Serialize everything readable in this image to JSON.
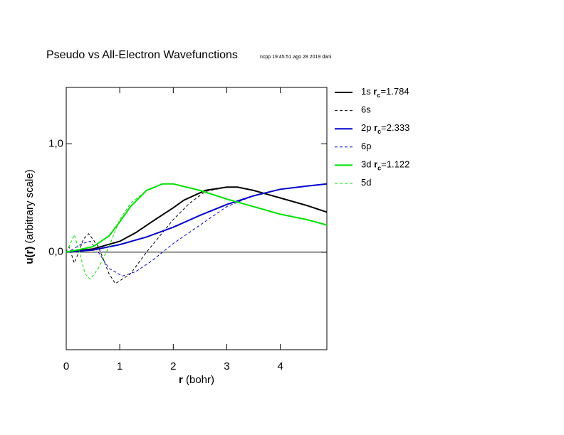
{
  "chart_data": {
    "type": "line",
    "title": "Pseudo vs All-Electron Wavefunctions",
    "subtitle": "ncpp 19:45:51 ago 28 2019 dani",
    "x_label": {
      "bold": "r",
      "rest": "(bohr)"
    },
    "y_label": {
      "bold": "u(r)",
      "rest": "(arbitrary scale)"
    },
    "xlim": [
      0,
      4.87
    ],
    "ylim": [
      -0.9,
      1.52
    ],
    "xticks": [
      0,
      1,
      2,
      3,
      4
    ],
    "yticks": [
      {
        "value": 0,
        "label": "0,0"
      },
      {
        "value": 1,
        "label": "1,0"
      }
    ],
    "zero_line": true,
    "series": [
      {
        "name": "1s",
        "rc_symbol": "r",
        "rc_subscript": "c",
        "rc_text": "=1.784",
        "color": "#000000",
        "dash": false,
        "x": [
          0,
          0.5,
          1,
          1.3,
          1.6,
          2,
          2.2,
          2.6,
          3,
          3.2,
          3.5,
          4,
          4.5,
          4.87
        ],
        "values": [
          0,
          0.03,
          0.1,
          0.18,
          0.28,
          0.41,
          0.48,
          0.57,
          0.6,
          0.6,
          0.57,
          0.5,
          0.43,
          0.37
        ]
      },
      {
        "name": "6s",
        "color": "#000000",
        "dash": true,
        "x": [
          0,
          0.05,
          0.15,
          0.25,
          0.32,
          0.42,
          0.6,
          0.8,
          0.92,
          1.2,
          1.5,
          2,
          2.3,
          2.6,
          3,
          3.2,
          3.5,
          4,
          4.5,
          4.87
        ],
        "values": [
          0,
          0.05,
          -0.1,
          0.02,
          0.12,
          0.17,
          0.05,
          -0.2,
          -0.29,
          -0.2,
          0.0,
          0.3,
          0.45,
          0.56,
          0.6,
          0.6,
          0.57,
          0.5,
          0.43,
          0.37
        ]
      },
      {
        "name": "2p",
        "rc_symbol": "r",
        "rc_subscript": "c",
        "rc_text": "=2.333",
        "color": "#0000cc",
        "dash": false,
        "x": [
          0,
          0.5,
          1,
          1.5,
          2,
          2.5,
          3,
          3.5,
          4,
          4.5,
          4.87
        ],
        "values": [
          0,
          0.02,
          0.07,
          0.14,
          0.23,
          0.34,
          0.44,
          0.52,
          0.58,
          0.61,
          0.63
        ]
      },
      {
        "name": "6p",
        "color": "#0000cc",
        "dash": true,
        "x": [
          0,
          0.1,
          0.3,
          0.45,
          0.6,
          0.8,
          1.05,
          1.3,
          1.6,
          2,
          2.5,
          3,
          3.5,
          4,
          4.5,
          4.87
        ],
        "values": [
          0,
          0.02,
          0.08,
          0.1,
          0.0,
          -0.15,
          -0.22,
          -0.18,
          -0.08,
          0.08,
          0.25,
          0.42,
          0.52,
          0.58,
          0.61,
          0.63
        ]
      },
      {
        "name": "3d",
        "rc_symbol": "r",
        "rc_subscript": "c",
        "rc_text": "=1.122",
        "color": "#00e000",
        "dash": false,
        "x": [
          0,
          0.5,
          0.8,
          1,
          1.2,
          1.5,
          1.8,
          2,
          2.5,
          3,
          3.5,
          4,
          4.5,
          4.87
        ],
        "values": [
          0,
          0.05,
          0.15,
          0.28,
          0.42,
          0.57,
          0.63,
          0.63,
          0.57,
          0.49,
          0.42,
          0.35,
          0.3,
          0.25
        ]
      },
      {
        "name": "5d",
        "color": "#00e000",
        "dash": true,
        "x": [
          0,
          0.05,
          0.15,
          0.25,
          0.35,
          0.45,
          0.6,
          0.8,
          1,
          1.2,
          1.5,
          1.8,
          2,
          2.5,
          3,
          3.5,
          4,
          4.5,
          4.87
        ],
        "values": [
          0,
          0.05,
          0.16,
          0.0,
          -0.2,
          -0.25,
          -0.15,
          0.05,
          0.3,
          0.45,
          0.57,
          0.63,
          0.63,
          0.57,
          0.49,
          0.42,
          0.35,
          0.3,
          0.25
        ]
      }
    ]
  }
}
